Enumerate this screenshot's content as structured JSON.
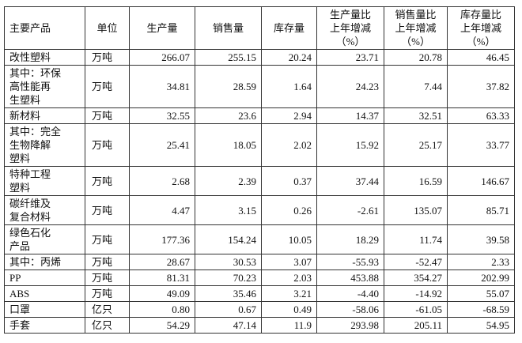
{
  "table": {
    "header": [
      [
        "主要产品"
      ],
      [
        "单位"
      ],
      [
        "生产量"
      ],
      [
        "销售量"
      ],
      [
        "库存量"
      ],
      [
        "生产量比",
        "上年增减",
        "（%）"
      ],
      [
        "销售量比",
        "上年增减",
        "（%）"
      ],
      [
        "库存量比",
        "上年增减",
        "（%）"
      ]
    ],
    "rows": [
      {
        "name": [
          "改性塑料"
        ],
        "unit": "万吨",
        "values": [
          "266.07",
          "255.15",
          "20.24",
          "23.71",
          "20.78",
          "46.45"
        ]
      },
      {
        "name": [
          "其中：环保",
          "高性能再",
          "生塑料"
        ],
        "unit": "万吨",
        "values": [
          "34.81",
          "28.59",
          "1.64",
          "24.23",
          "7.44",
          "37.82"
        ]
      },
      {
        "name": [
          "新材料"
        ],
        "unit": "万吨",
        "values": [
          "32.55",
          "23.6",
          "2.94",
          "14.37",
          "32.51",
          "63.33"
        ]
      },
      {
        "name": [
          "其中：完全",
          "生物降解",
          "塑料"
        ],
        "unit": "万吨",
        "values": [
          "25.41",
          "18.05",
          "2.02",
          "15.92",
          "25.17",
          "33.77"
        ]
      },
      {
        "name": [
          "特种工程",
          "塑料"
        ],
        "unit": "万吨",
        "values": [
          "2.68",
          "2.39",
          "0.37",
          "37.44",
          "16.59",
          "146.67"
        ]
      },
      {
        "name": [
          "碳纤维及",
          "复合材料"
        ],
        "unit": "万吨",
        "values": [
          "4.47",
          "3.15",
          "0.26",
          "-2.61",
          "135.07",
          "85.71"
        ]
      },
      {
        "name": [
          "绿色石化",
          "产品"
        ],
        "unit": "万吨",
        "values": [
          "177.36",
          "154.24",
          "10.05",
          "18.29",
          "11.74",
          "39.58"
        ]
      },
      {
        "name": [
          "其中：丙烯"
        ],
        "unit": "万吨",
        "values": [
          "28.67",
          "30.53",
          "3.07",
          "-55.93",
          "-52.47",
          "2.33"
        ]
      },
      {
        "name": [
          "PP"
        ],
        "unit": "万吨",
        "values": [
          "81.31",
          "70.23",
          "2.03",
          "453.88",
          "354.27",
          "202.99"
        ]
      },
      {
        "name": [
          "ABS"
        ],
        "unit": "万吨",
        "values": [
          "49.09",
          "35.46",
          "3.21",
          "-4.40",
          "-14.92",
          "55.07"
        ]
      },
      {
        "name": [
          "口罩"
        ],
        "unit": "亿只",
        "values": [
          "0.80",
          "0.67",
          "0.49",
          "-58.06",
          "-61.05",
          "-68.59"
        ]
      },
      {
        "name": [
          "手套"
        ],
        "unit": "亿只",
        "values": [
          "54.29",
          "47.14",
          "11.9",
          "293.98",
          "205.11",
          "54.95"
        ]
      }
    ]
  }
}
